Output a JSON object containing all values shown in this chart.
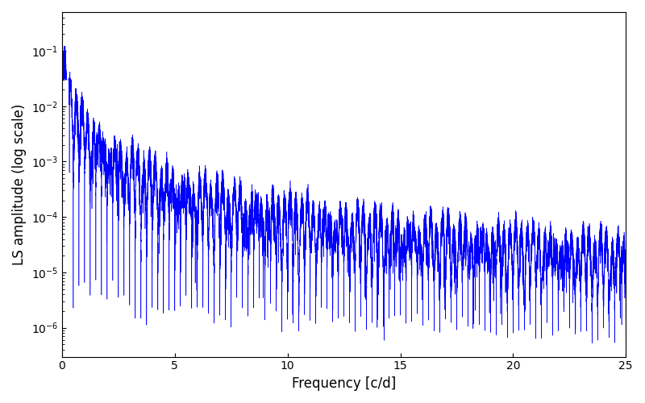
{
  "xlabel": "Frequency [c/d]",
  "ylabel": "LS amplitude (log scale)",
  "line_color": "#0000ff",
  "xlim": [
    0,
    25
  ],
  "ylim": [
    3e-07,
    0.5
  ],
  "xmin": 0.0,
  "xmax": 25.0,
  "num_points": 20000,
  "seed": 42,
  "background_color": "#ffffff",
  "figsize": [
    8.0,
    5.0
  ],
  "dpi": 100
}
